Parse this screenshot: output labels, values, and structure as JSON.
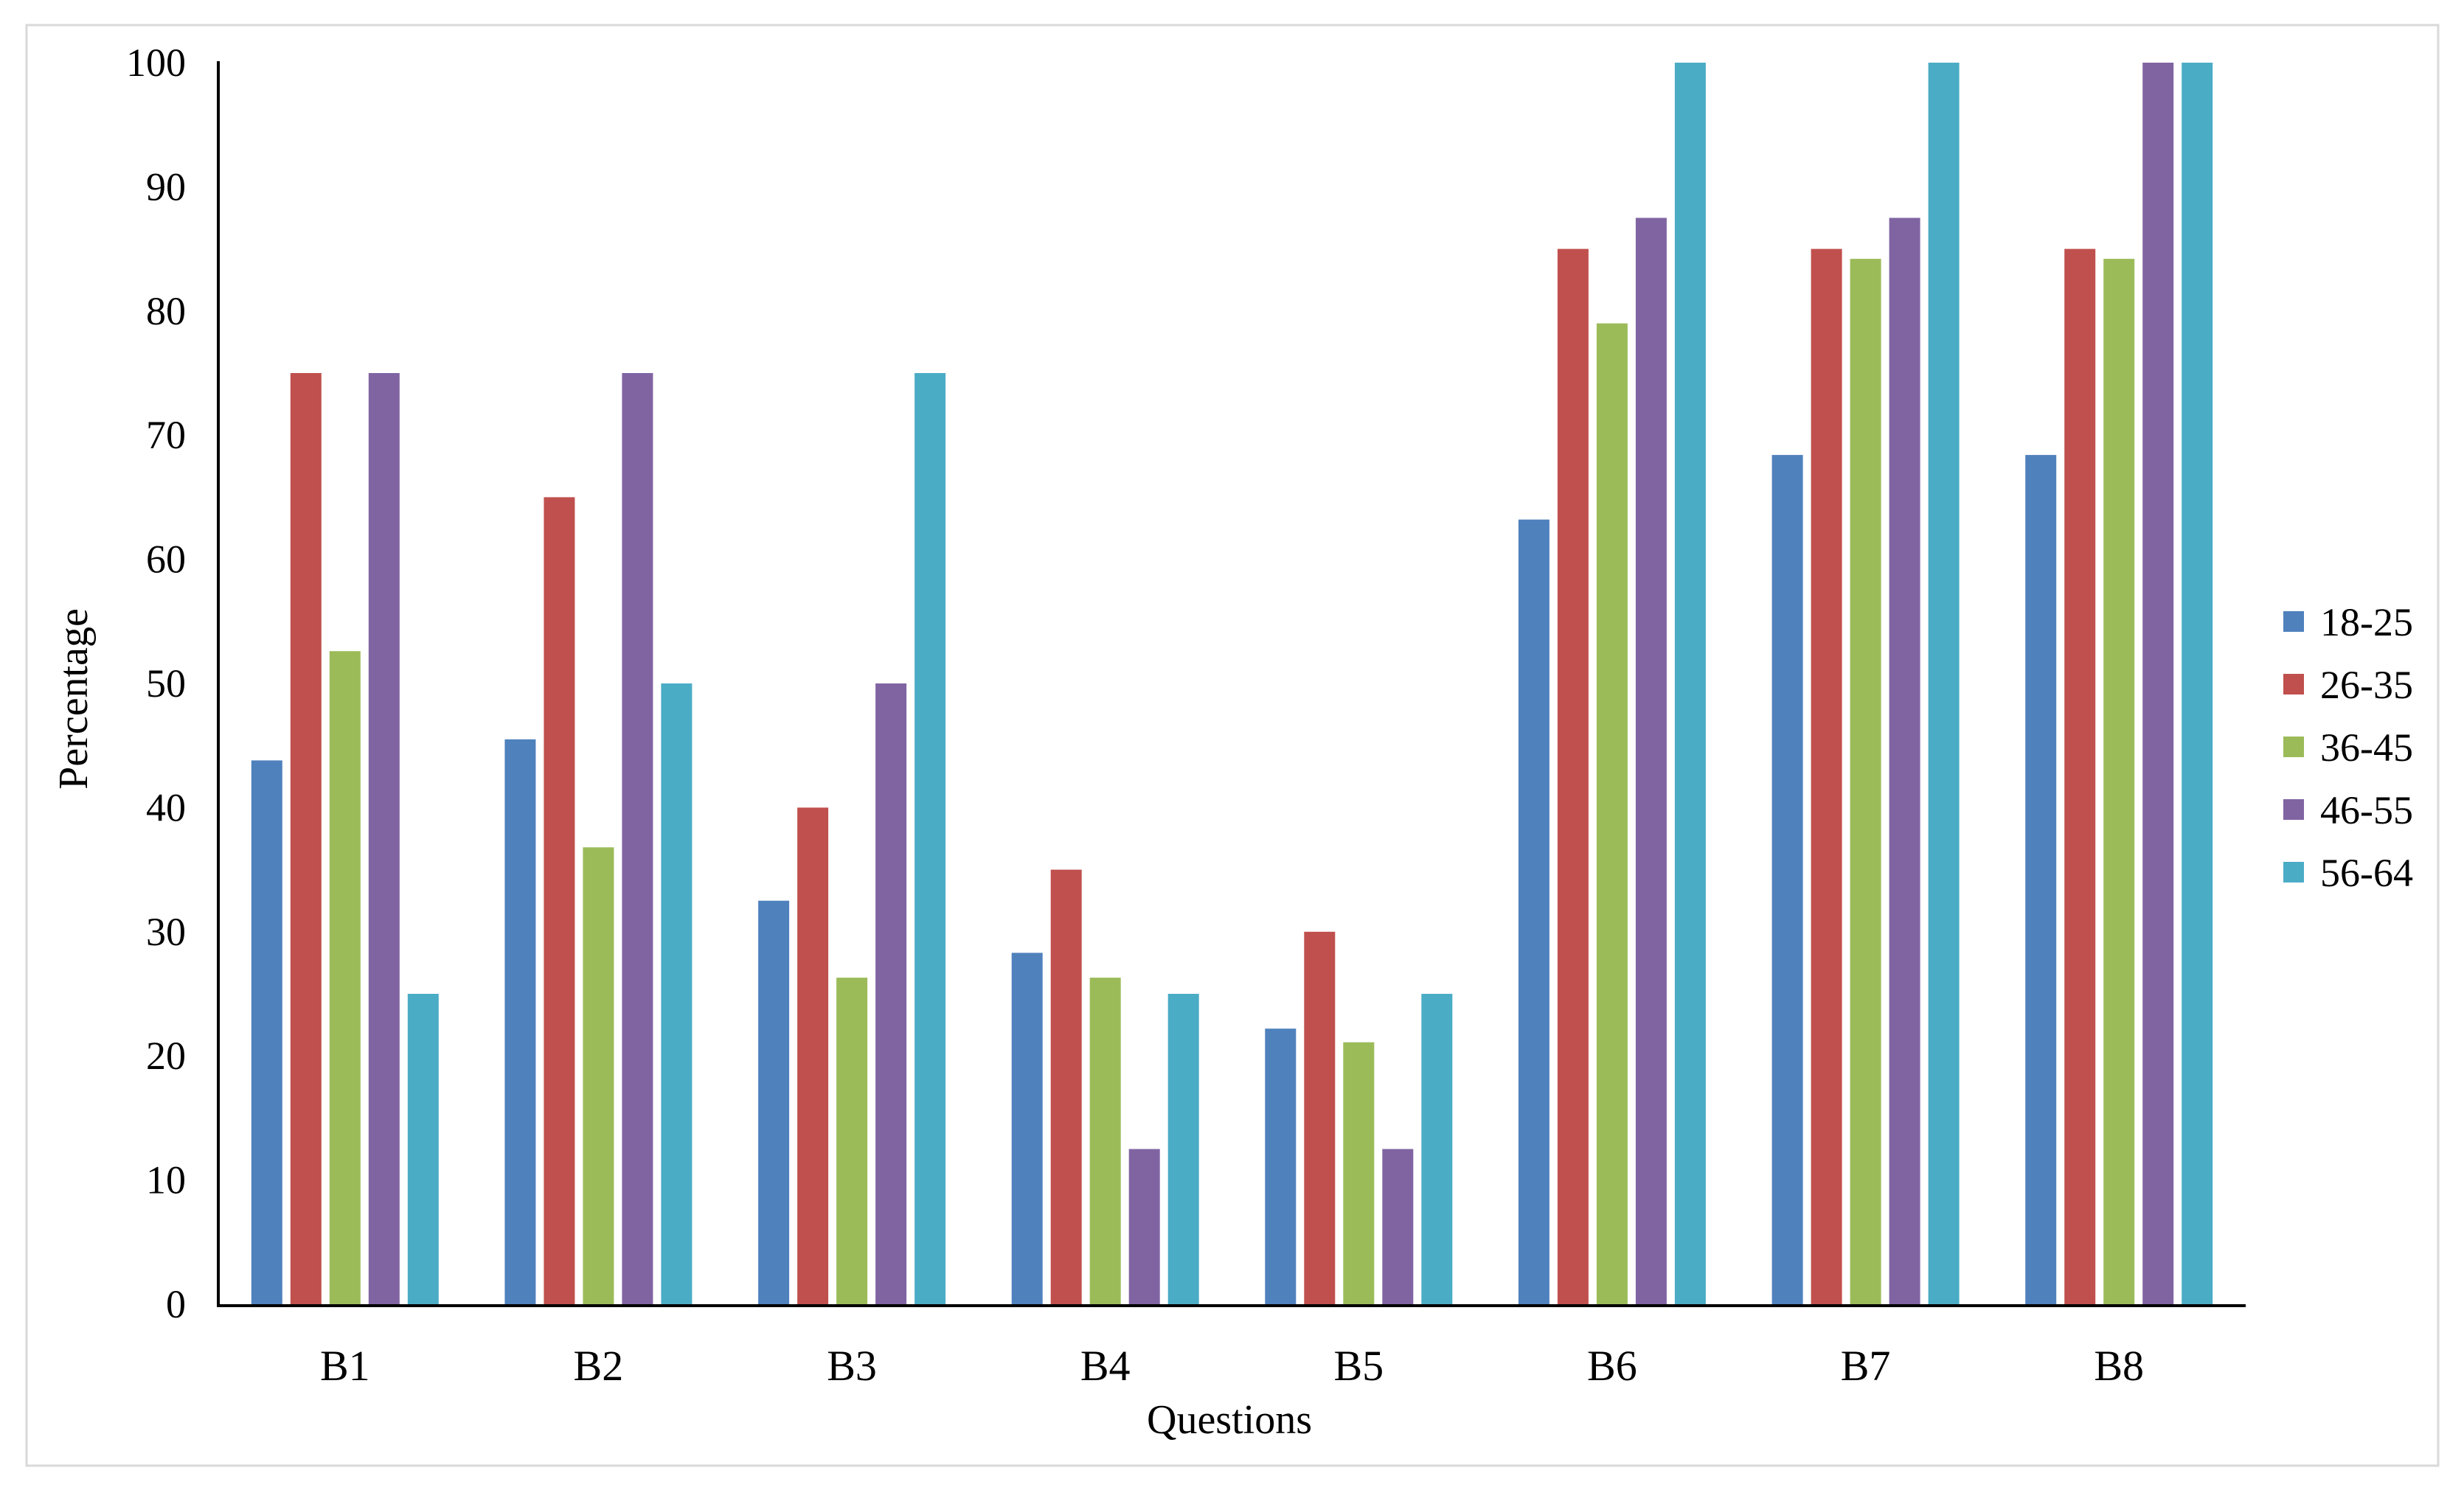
{
  "figure": {
    "description": "Grouped column chart of survey question results by age group"
  },
  "chart_data": {
    "type": "bar",
    "title": "",
    "xlabel": "Questions",
    "ylabel": "Percentage",
    "categories": [
      "B1",
      "B2",
      "B3",
      "B4",
      "B5",
      "B6",
      "B7",
      "B8"
    ],
    "series": [
      {
        "name": "18-25",
        "color": "#4F81BD",
        "values": [
          43.8,
          45.5,
          32.5,
          28.3,
          22.2,
          63.2,
          68.4,
          68.4
        ]
      },
      {
        "name": "26-35",
        "color": "#C0504D",
        "values": [
          75,
          65,
          40,
          35,
          30,
          85,
          85,
          85
        ]
      },
      {
        "name": "36-45",
        "color": "#9BBB59",
        "values": [
          52.6,
          36.8,
          26.3,
          26.3,
          21.1,
          79,
          84.2,
          84.2
        ]
      },
      {
        "name": "46-55",
        "color": "#8064A2",
        "values": [
          75,
          75,
          50,
          12.5,
          12.5,
          87.5,
          87.5,
          100
        ]
      },
      {
        "name": "56-64",
        "color": "#4BACC6",
        "values": [
          25,
          50,
          75,
          25,
          25,
          100,
          100,
          100
        ]
      }
    ],
    "ylim": [
      0,
      100
    ],
    "ytick_step": 10,
    "yticks": [
      0,
      10,
      20,
      30,
      40,
      50,
      60,
      70,
      80,
      90,
      100
    ],
    "grid": "off",
    "legend_position": "right",
    "axis_color": "#000000",
    "border_color": "#D9D9D9",
    "background": "#FFFFFF"
  }
}
